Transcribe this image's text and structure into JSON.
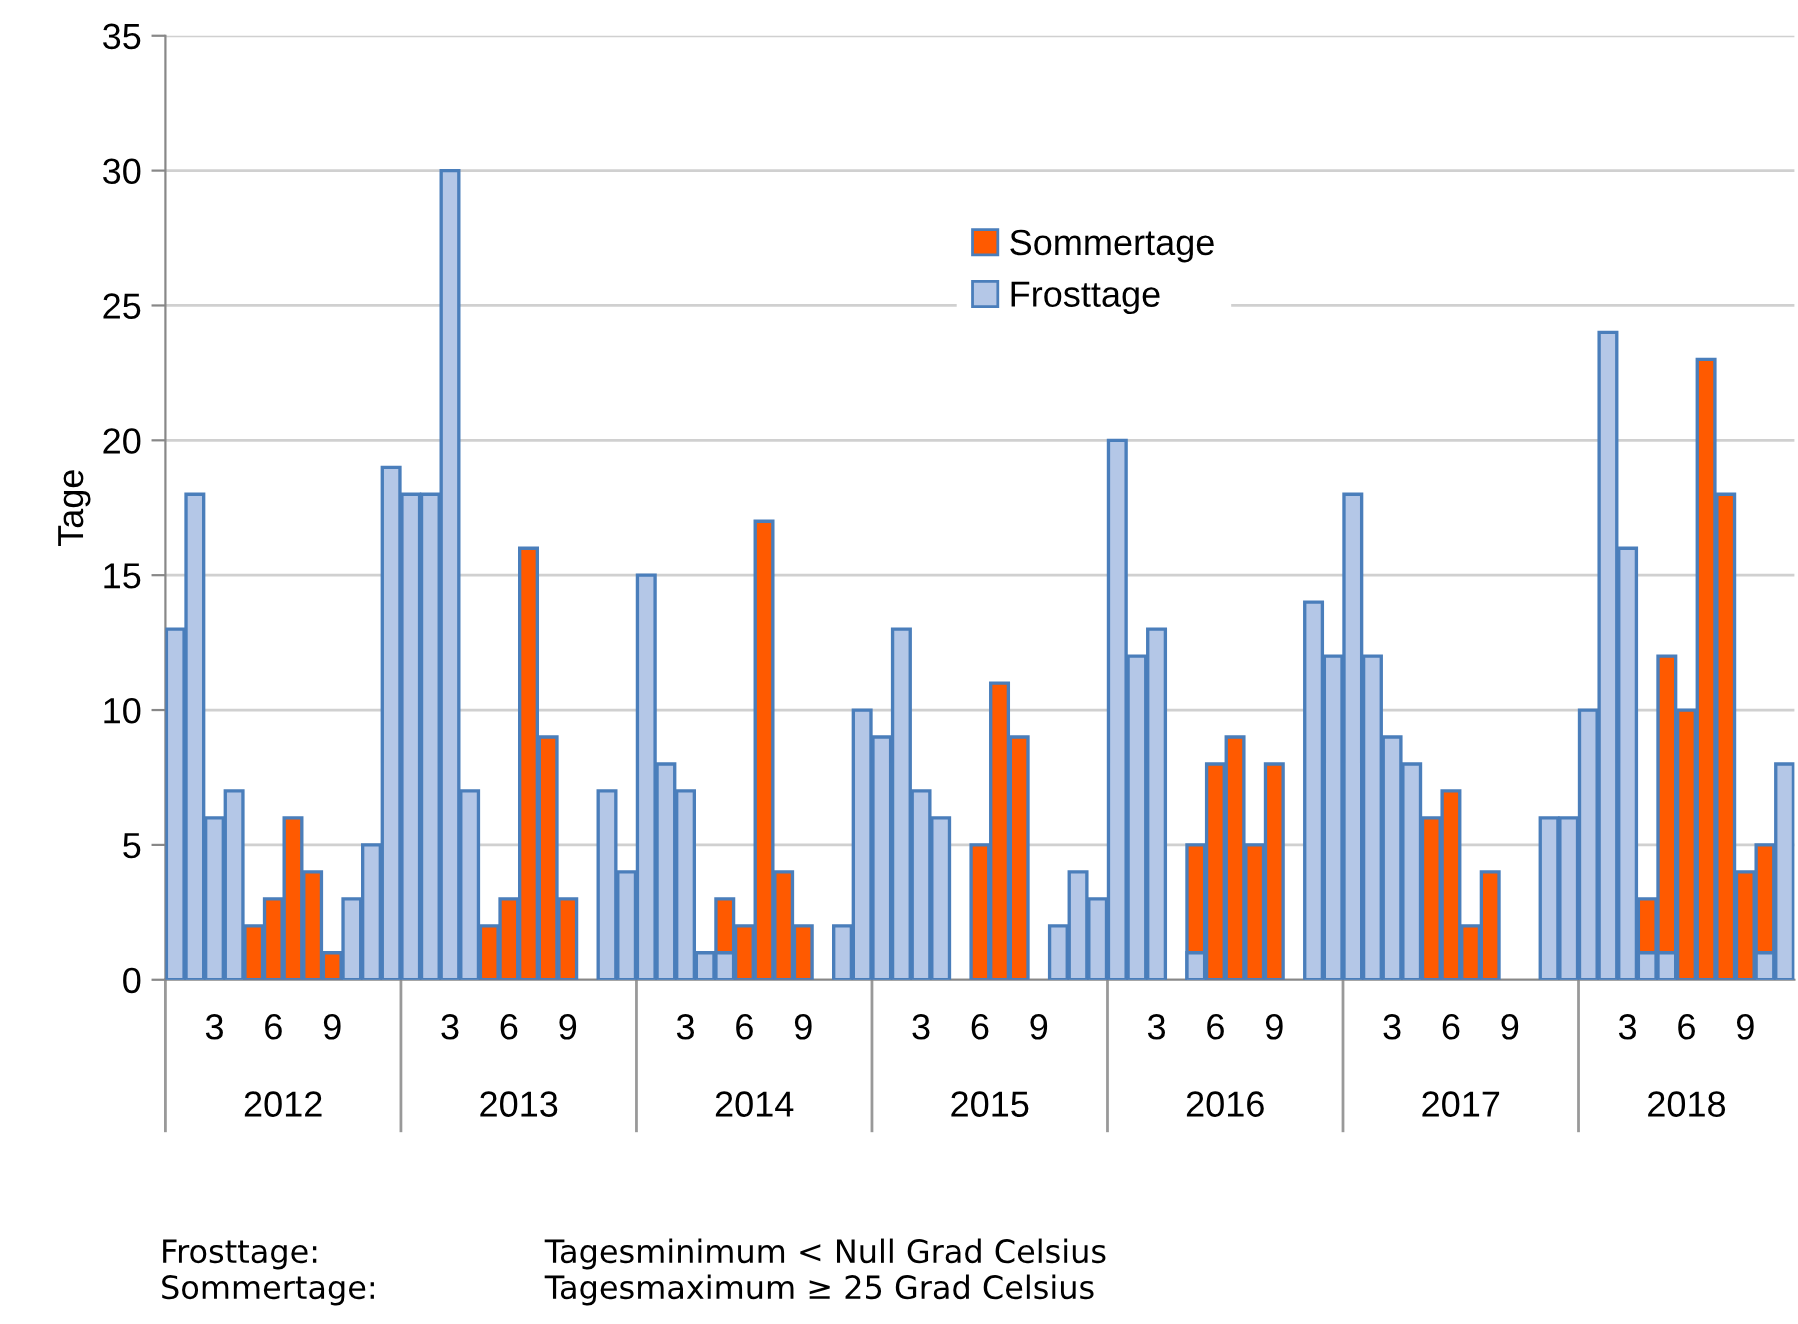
{
  "chart_data": {
    "type": "bar",
    "ylabel": "Tage",
    "categories": [
      null,
      null,
      "3",
      null,
      null,
      "6",
      null,
      null,
      "9",
      null,
      null,
      null,
      null,
      null,
      "3",
      null,
      null,
      "6",
      null,
      null,
      "9",
      null,
      null,
      null,
      null,
      null,
      "3",
      null,
      null,
      "6",
      null,
      null,
      "9",
      null,
      null,
      null,
      null,
      null,
      "3",
      null,
      null,
      "6",
      null,
      null,
      "9",
      null,
      null,
      null,
      null,
      null,
      "3",
      null,
      null,
      "6",
      null,
      null,
      "9",
      null,
      null,
      null,
      null,
      null,
      "3",
      null,
      null,
      "6",
      null,
      null,
      "9",
      null,
      null,
      null,
      null,
      null,
      "3",
      null,
      null,
      "6",
      null,
      null,
      "9",
      null,
      null
    ],
    "series": [
      {
        "name": "Sommertage",
        "color": "#ff5a00",
        "values": [
          null,
          null,
          null,
          null,
          2,
          3,
          6,
          4,
          1,
          null,
          null,
          null,
          null,
          null,
          null,
          null,
          2,
          3,
          16,
          9,
          3,
          null,
          null,
          null,
          null,
          null,
          null,
          null,
          3,
          2,
          17,
          4,
          2,
          null,
          null,
          null,
          null,
          null,
          null,
          null,
          null,
          5,
          11,
          9,
          null,
          null,
          null,
          null,
          null,
          null,
          null,
          null,
          5,
          8,
          9,
          5,
          8,
          null,
          null,
          null,
          null,
          null,
          null,
          null,
          6,
          7,
          2,
          4,
          null,
          null,
          null,
          null,
          null,
          null,
          null,
          3,
          12,
          10,
          23,
          18,
          4,
          5,
          null
        ]
      },
      {
        "name": "Frosttage",
        "color": "#b4c7e7",
        "values": [
          13,
          18,
          6,
          7,
          null,
          null,
          null,
          null,
          null,
          3,
          5,
          19,
          18,
          18,
          30,
          7,
          null,
          null,
          null,
          null,
          null,
          null,
          7,
          4,
          15,
          8,
          7,
          1,
          1,
          null,
          null,
          null,
          null,
          null,
          2,
          10,
          9,
          13,
          7,
          6,
          null,
          null,
          null,
          null,
          null,
          2,
          4,
          3,
          20,
          12,
          13,
          null,
          1,
          null,
          null,
          null,
          null,
          null,
          14,
          12,
          18,
          12,
          9,
          8,
          null,
          null,
          null,
          null,
          null,
          null,
          6,
          6,
          10,
          24,
          16,
          1,
          1,
          null,
          null,
          null,
          null,
          1,
          8
        ]
      }
    ],
    "ylim": [
      0,
      35
    ],
    "yticks": [
      0,
      5,
      10,
      15,
      20,
      25,
      30,
      35
    ],
    "grid": "y",
    "legend": "top",
    "annotations": [
      "2012",
      "2013",
      "2014",
      "2015",
      "2016",
      "2017",
      "2018",
      "Frosttage:",
      "Tagesminimum < Null Grad Celsius",
      "Sommertage:",
      "Tagesmaximum ≥ 25 Grad Celsius"
    ]
  }
}
